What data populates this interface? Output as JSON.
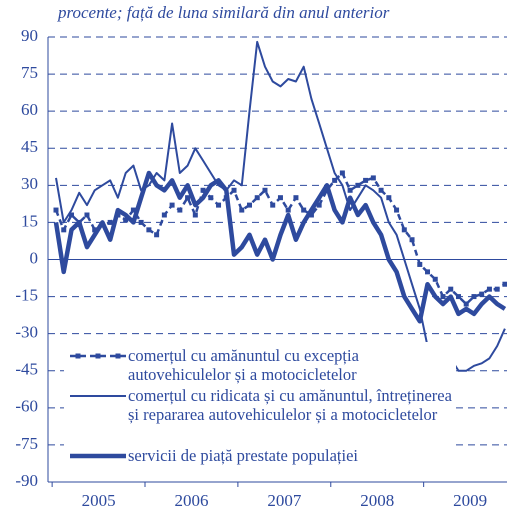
{
  "chart_data": {
    "type": "line",
    "title": "procente; față de luna similară din anul anterior",
    "years": [
      "2005",
      "2006",
      "2007",
      "2008",
      "2009"
    ],
    "months_per_year": 12,
    "ylim": [
      -90,
      90
    ],
    "yticks": [
      -90,
      -75,
      -60,
      -45,
      -30,
      -15,
      0,
      15,
      30,
      45,
      60,
      75,
      90
    ],
    "grid": true,
    "series": [
      {
        "name": "comerțul cu amănuntul cu excepția autovehiculelor și a motocicletelor",
        "color": "#2e4a9e",
        "line_style": "dashed-markers",
        "line_width": 2.5,
        "values": [
          20,
          12,
          18,
          15,
          18,
          12,
          14,
          15,
          18,
          16,
          20,
          15,
          12,
          10,
          18,
          22,
          20,
          25,
          18,
          28,
          25,
          22,
          25,
          28,
          20,
          22,
          25,
          28,
          22,
          25,
          20,
          25,
          20,
          18,
          22,
          28,
          32,
          35,
          28,
          30,
          32,
          33,
          28,
          25,
          20,
          12,
          8,
          -2,
          -5,
          -8,
          -15,
          -12,
          -15,
          -18,
          -15,
          -14,
          -12,
          -12,
          -10
        ]
      },
      {
        "name": "comerțul cu ridicata și cu amănuntul, întreținerea și repararea autovehiculelor și a motocicletelor",
        "color": "#2e4a9e",
        "line_style": "solid",
        "line_width": 2,
        "values": [
          33,
          15,
          20,
          27,
          22,
          28,
          30,
          32,
          25,
          35,
          38,
          28,
          30,
          35,
          32,
          55,
          35,
          38,
          45,
          40,
          35,
          30,
          28,
          32,
          30,
          60,
          88,
          78,
          72,
          70,
          73,
          72,
          78,
          65,
          55,
          45,
          35,
          30,
          20,
          25,
          30,
          28,
          25,
          15,
          10,
          0,
          -10,
          -20,
          -35,
          -42,
          -38,
          -40,
          -45,
          -45,
          -43,
          -42,
          -40,
          -35,
          -28
        ]
      },
      {
        "name": "servicii de piață prestate populației",
        "color": "#2e4a9e",
        "line_style": "solid",
        "line_width": 4.5,
        "values": [
          15,
          -5,
          12,
          15,
          5,
          10,
          15,
          8,
          20,
          18,
          15,
          25,
          35,
          30,
          28,
          32,
          25,
          30,
          22,
          25,
          30,
          32,
          28,
          2,
          5,
          10,
          2,
          8,
          0,
          10,
          18,
          8,
          15,
          20,
          25,
          30,
          20,
          15,
          25,
          18,
          22,
          15,
          10,
          0,
          -5,
          -15,
          -20,
          -25,
          -10,
          -15,
          -18,
          -15,
          -22,
          -20,
          -22,
          -18,
          -15,
          -18,
          -20
        ]
      }
    ]
  }
}
